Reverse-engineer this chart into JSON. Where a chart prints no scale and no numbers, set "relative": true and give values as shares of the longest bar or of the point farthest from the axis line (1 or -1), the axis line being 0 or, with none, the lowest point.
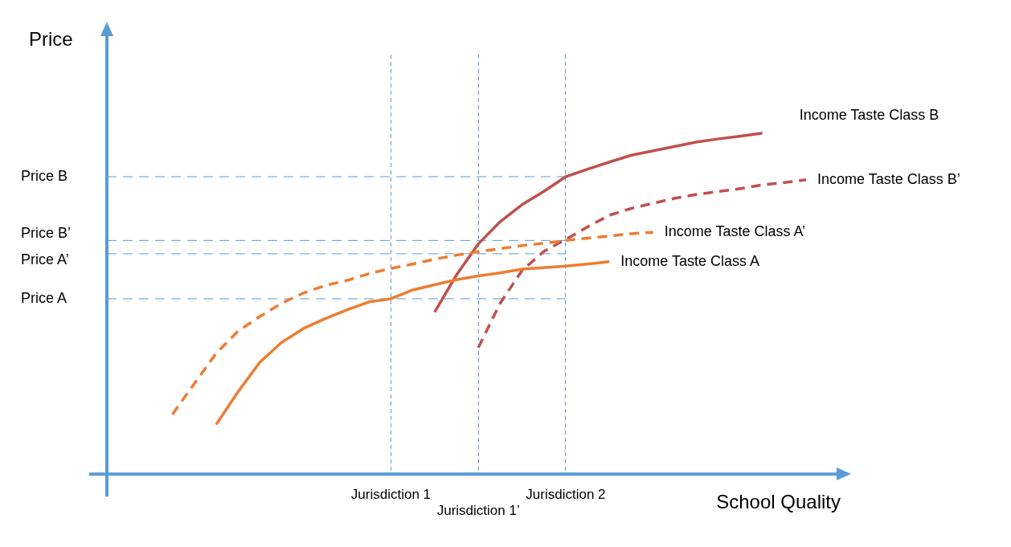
{
  "chart_data": {
    "type": "line",
    "relative": true,
    "xlabel": "School Quality",
    "ylabel": "Price",
    "grid": "x",
    "legend": false,
    "marker": "none",
    "categories": [
      null,
      null,
      null,
      null,
      null,
      null,
      null,
      null,
      null,
      null,
      null,
      null,
      null,
      "Jurisdiction 1",
      null,
      null,
      null,
      "Jurisdiction 1’",
      null,
      null,
      null,
      "Jurisdiction 2",
      null,
      null,
      null,
      null,
      null,
      null,
      null,
      null,
      null,
      null,
      null
    ],
    "series": [
      {
        "name": "Income Taste Class A",
        "color": "#ed7d31",
        "line_style": "solid",
        "values": [
          null,
          null,
          null,
          null,
          null,
          0.145,
          0.241,
          0.328,
          0.386,
          0.427,
          0.456,
          0.482,
          0.505,
          0.514,
          0.54,
          0.555,
          0.57,
          0.581,
          0.59,
          0.601,
          0.605,
          0.61,
          0.616,
          0.623,
          null,
          null,
          null,
          null,
          null,
          null,
          null,
          null,
          null
        ]
      },
      {
        "name": "Income Taste Class A’",
        "color": "#ed7d31",
        "line_style": "dashed",
        "values": [
          null,
          null,
          null,
          0.175,
          0.265,
          0.354,
          0.419,
          0.462,
          0.501,
          0.531,
          0.553,
          0.568,
          0.588,
          0.603,
          0.616,
          0.63,
          0.642,
          0.652,
          0.661,
          0.67,
          0.677,
          0.685,
          0.692,
          0.698,
          0.705,
          0.709,
          null,
          null,
          null,
          null,
          null,
          null,
          null
        ]
      },
      {
        "name": "Income Taste Class B",
        "color": "#c0504d",
        "line_style": "solid",
        "values": [
          null,
          null,
          null,
          null,
          null,
          null,
          null,
          null,
          null,
          null,
          null,
          null,
          null,
          null,
          null,
          0.475,
          0.584,
          0.675,
          0.74,
          0.79,
          0.829,
          0.872,
          0.894,
          0.915,
          0.935,
          0.948,
          0.961,
          0.974,
          0.983,
          0.991,
          1.0,
          null,
          null
        ]
      },
      {
        "name": "Income Taste Class B’",
        "color": "#c0504d",
        "line_style": "dashed",
        "values": [
          null,
          null,
          null,
          null,
          null,
          null,
          null,
          null,
          null,
          null,
          null,
          null,
          null,
          null,
          null,
          null,
          null,
          0.371,
          0.501,
          0.597,
          0.653,
          0.688,
          0.725,
          0.759,
          0.779,
          0.794,
          0.809,
          0.82,
          0.829,
          0.837,
          0.848,
          0.855,
          0.863
        ]
      }
    ],
    "ref_lines": [
      {
        "axis": "y",
        "value": 0.872,
        "label": "Price B",
        "color": "#5b9bd5",
        "line_style": "dashed"
      },
      {
        "axis": "y",
        "value": 0.685,
        "label": "Price B’",
        "color": "#5b9bd5",
        "line_style": "dashed"
      },
      {
        "axis": "y",
        "value": 0.646,
        "label": "Price A’",
        "color": "#5b9bd5",
        "line_style": "dashed"
      },
      {
        "axis": "y",
        "value": 0.514,
        "label": "Price A",
        "color": "#5b9bd5",
        "line_style": "dashed"
      }
    ]
  }
}
